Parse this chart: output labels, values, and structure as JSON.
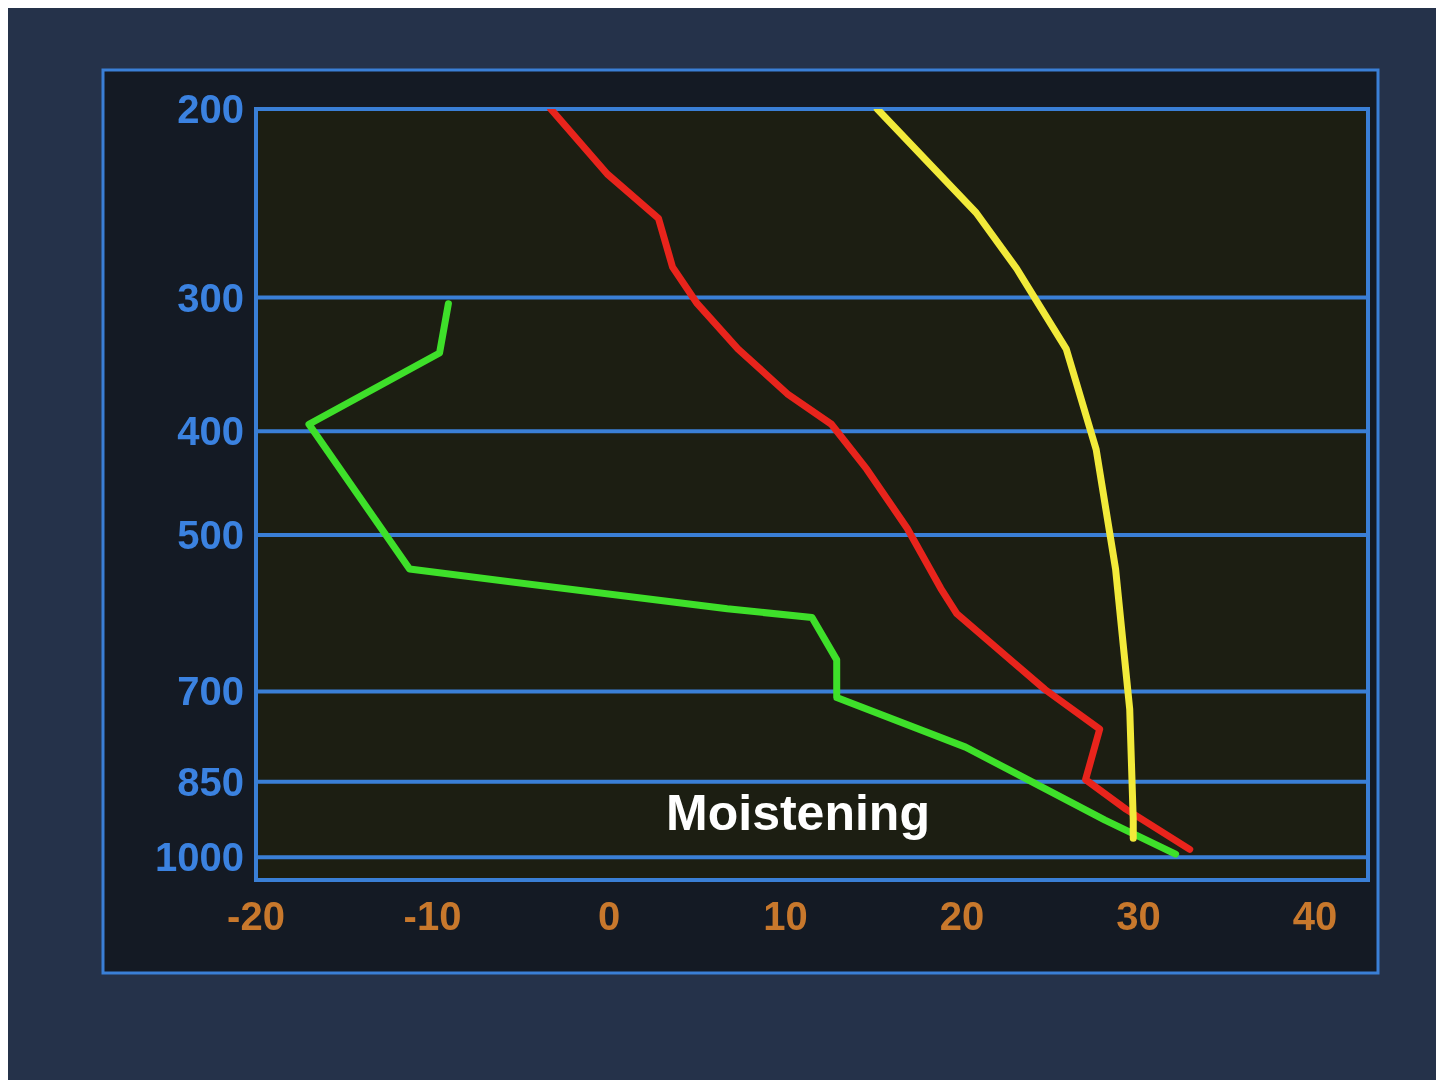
{
  "chart_data": {
    "type": "line",
    "log": "y",
    "grid": "y",
    "marker": "none",
    "line_style": "solid",
    "xlim": [
      -20,
      43
    ],
    "xticks": [
      -20,
      -10,
      0,
      10,
      20,
      30,
      40
    ],
    "ylim": [
      1050,
      200
    ],
    "yticks": [
      200,
      300,
      400,
      500,
      700,
      850,
      1000
    ],
    "annotations": [
      "Moistening"
    ],
    "series": [
      {
        "color": "#e8241c",
        "x": [
          -3.3,
          -0.1,
          2.8,
          3.6,
          5.0,
          7.3,
          10.1,
          12.6,
          14.6,
          16.9,
          18.8,
          19.7,
          24.7,
          27.8,
          27.0,
          29.3,
          32.9
        ],
        "values": [
          200,
          230,
          253,
          281,
          304,
          335,
          369,
          394,
          434,
          493,
          561,
          592,
          697,
          759,
          846,
          902,
          983
        ]
      },
      {
        "color": "#3ee02a",
        "x": [
          -9.1,
          -9.6,
          -17.0,
          -11.3,
          6.7,
          11.5,
          12.9,
          12.9,
          20.2,
          28.1,
          32.1
        ],
        "values": [
          304,
          338,
          394,
          538,
          586,
          597,
          654,
          709,
          789,
          923,
          993
        ]
      },
      {
        "color": "#f2ea3a",
        "x": [
          15.2,
          20.8,
          23.1,
          25.9,
          27.6,
          28.7,
          29.5,
          29.7,
          29.7
        ],
        "values": [
          200,
          250,
          282,
          335,
          416,
          538,
          727,
          922,
          960
        ]
      }
    ]
  }
}
